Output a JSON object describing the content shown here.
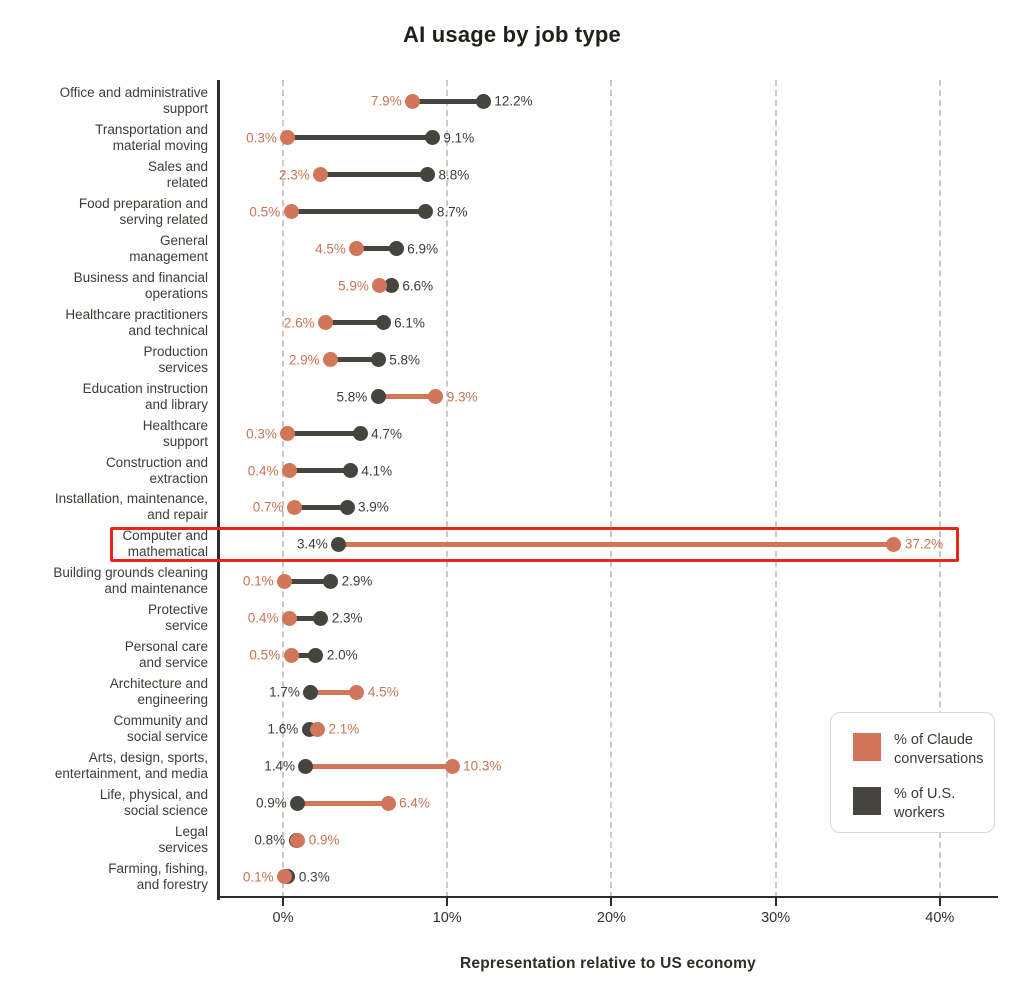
{
  "title": "AI usage by job type",
  "xlabel": "Representation relative to US economy",
  "legend": {
    "claude_label": "% of Claude conversations",
    "workers_label": "% of U.S. workers"
  },
  "colors": {
    "claude": "#d2765a",
    "claude_text": "#c97355",
    "workers": "#45443e",
    "workers_text": "#3d3c38",
    "highlight": "#e8271c"
  },
  "chart_data": {
    "type": "dumbbell",
    "title": "AI usage by job type",
    "xlabel": "Representation relative to US economy",
    "x_ticks": [
      "0%",
      "10%",
      "20%",
      "30%",
      "40%"
    ],
    "x_tick_values": [
      0,
      10,
      20,
      30,
      40
    ],
    "x_range": [
      0,
      43
    ],
    "grid": "dashed-vertical",
    "legend_position": "bottom-right",
    "value_suffix": "%",
    "categories": [
      "Office and administrative\nsupport",
      "Transportation and\nmaterial moving",
      "Sales and\nrelated",
      "Food preparation and\nserving related",
      "General\nmanagement",
      "Business and financial\noperations",
      "Healthcare practitioners\nand technical",
      "Production\nservices",
      "Education instruction\nand library",
      "Healthcare\nsupport",
      "Construction and\nextraction",
      "Installation, maintenance,\nand repair",
      "Computer and\nmathematical",
      "Building grounds cleaning\nand maintenance",
      "Protective\nservice",
      "Personal care\nand service",
      "Architecture and\nengineering",
      "Community and\nsocial service",
      "Arts, design, sports,\nentertainment, and media",
      "Life, physical, and\nsocial science",
      "Legal\nservices",
      "Farming, fishing,\nand forestry"
    ],
    "series": [
      {
        "name": "% of Claude conversations",
        "color": "#d2765a",
        "values": [
          7.9,
          0.3,
          2.3,
          0.5,
          4.5,
          5.9,
          2.6,
          2.9,
          9.3,
          0.3,
          0.4,
          0.7,
          37.2,
          0.1,
          0.4,
          0.5,
          4.5,
          2.1,
          10.3,
          6.4,
          0.9,
          0.1
        ]
      },
      {
        "name": "% of U.S. workers",
        "color": "#45443e",
        "values": [
          12.2,
          9.1,
          8.8,
          8.7,
          6.9,
          6.6,
          6.1,
          5.8,
          5.8,
          4.7,
          4.1,
          3.9,
          3.4,
          2.9,
          2.3,
          2.0,
          1.7,
          1.6,
          1.4,
          0.9,
          0.8,
          0.3
        ]
      }
    ],
    "highlight": {
      "category": "Computer and mathematical",
      "index": 12,
      "style": "red-box"
    }
  }
}
